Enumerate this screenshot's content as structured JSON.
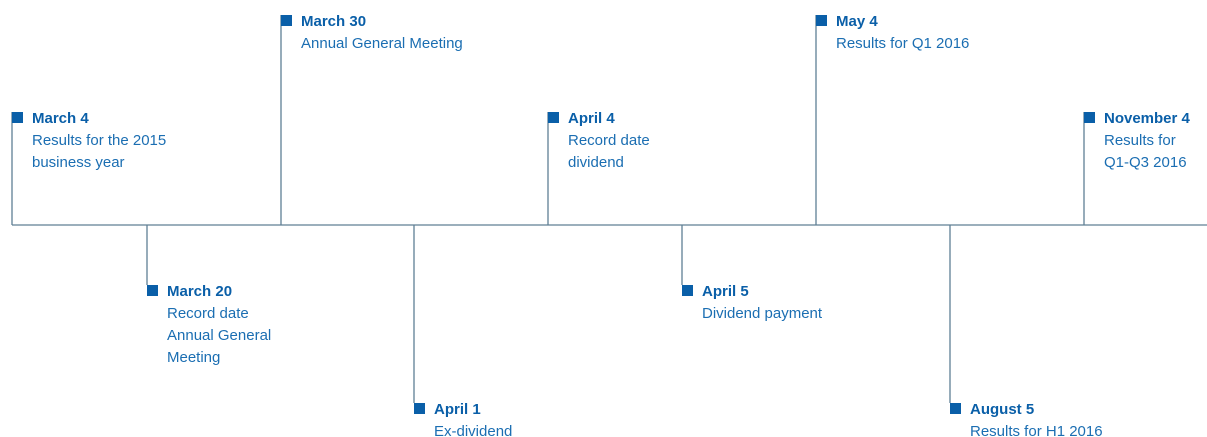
{
  "events": [
    {
      "date": "March 4",
      "lines": [
        "Results for the 2015",
        "business year"
      ]
    },
    {
      "date": "March 20",
      "lines": [
        "Record date",
        "Annual General",
        "Meeting"
      ]
    },
    {
      "date": "March 30",
      "lines": [
        "Annual General Meeting"
      ]
    },
    {
      "date": "April 1",
      "lines": [
        "Ex-dividend"
      ]
    },
    {
      "date": "April 4",
      "lines": [
        "Record date",
        "dividend"
      ]
    },
    {
      "date": "April 5",
      "lines": [
        "Dividend payment"
      ]
    },
    {
      "date": "May 4",
      "lines": [
        "Results for Q1 2016"
      ]
    },
    {
      "date": "August 5",
      "lines": [
        "Results for H1 2016"
      ]
    },
    {
      "date": "November 4",
      "lines": [
        "Results for",
        "Q1-Q3 2016"
      ]
    }
  ]
}
